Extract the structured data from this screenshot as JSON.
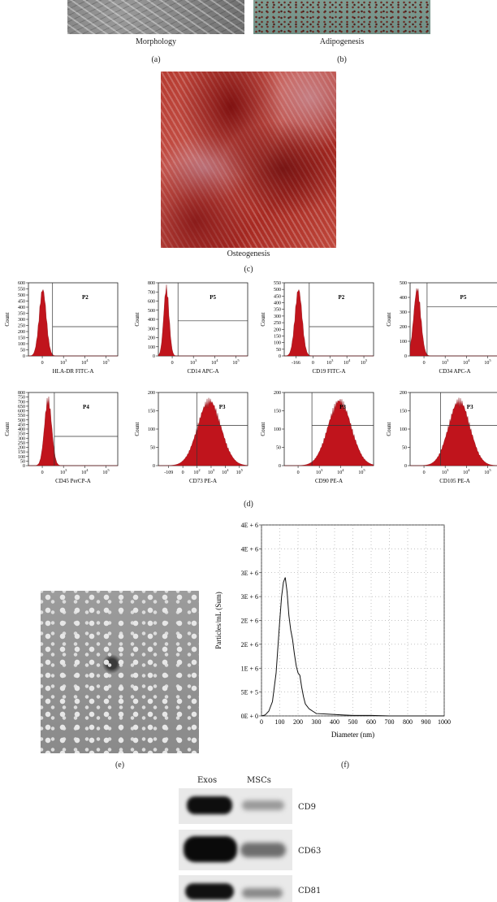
{
  "figure": {
    "panel_a": {
      "caption": "Morphology",
      "label": "(a)"
    },
    "panel_b": {
      "caption": "Adipogenesis",
      "label": "(b)"
    },
    "panel_c": {
      "caption": "Osteogenesis",
      "label": "(c)"
    },
    "panel_d": {
      "label": "(d)"
    },
    "panel_e": {
      "label": "(e)"
    },
    "panel_f": {
      "label": "(f)"
    },
    "panel_g": {
      "lane_labels": [
        "Exos",
        "MSCs"
      ],
      "bands": [
        "CD9",
        "CD63",
        "CD81"
      ]
    }
  },
  "chart_data": [
    {
      "type": "histogram",
      "xlabel": "HLA-DR FITC-A",
      "ylabel": "Count",
      "ylim": [
        0,
        600
      ],
      "yticks": [
        0,
        50,
        100,
        150,
        200,
        250,
        300,
        350,
        400,
        450,
        500,
        550,
        600
      ],
      "xticks": [
        "0",
        "10^3",
        "10^4",
        "10^5"
      ],
      "gate": "P2"
    },
    {
      "type": "histogram",
      "xlabel": "CD14 APC-A",
      "ylabel": "Count",
      "ylim": [
        0,
        800
      ],
      "yticks": [
        0,
        100,
        200,
        300,
        400,
        500,
        600,
        700,
        800
      ],
      "xticks": [
        "0",
        "10^3",
        "10^4",
        "10^5"
      ],
      "gate": "P5"
    },
    {
      "type": "histogram",
      "xlabel": "CD19 FITC-A",
      "ylabel": "Count",
      "ylim": [
        0,
        550
      ],
      "yticks": [
        0,
        50,
        100,
        150,
        200,
        250,
        300,
        350,
        400,
        450,
        500,
        550
      ],
      "xticks": [
        "-166",
        "0",
        "10^3",
        "10^4",
        "10^5"
      ],
      "gate": "P2"
    },
    {
      "type": "histogram",
      "xlabel": "CD34 APC-A",
      "ylabel": "Count",
      "ylim": [
        0,
        500
      ],
      "yticks": [
        0,
        100,
        200,
        300,
        400,
        500
      ],
      "xticks": [
        "0",
        "10^3",
        "10^4",
        "10^5"
      ],
      "gate": "P5"
    },
    {
      "type": "histogram",
      "xlabel": "CD45 PerCP-A",
      "ylabel": "Count",
      "ylim": [
        0,
        800
      ],
      "yticks": [
        0,
        50,
        100,
        150,
        200,
        250,
        300,
        350,
        400,
        450,
        500,
        550,
        600,
        650,
        700,
        750,
        800
      ],
      "xticks": [
        "0",
        "10^3",
        "10^4",
        "10^5"
      ],
      "gate": "P4"
    },
    {
      "type": "histogram",
      "xlabel": "CD73 PE-A",
      "ylabel": "Count",
      "ylim": [
        0,
        200
      ],
      "yticks": [
        0,
        50,
        100,
        150,
        200
      ],
      "xticks": [
        "-109",
        "0",
        "10^2",
        "10^3",
        "10^4",
        "10^5"
      ],
      "gate": "P3"
    },
    {
      "type": "histogram",
      "xlabel": "CD90 PE-A",
      "ylabel": "Count",
      "ylim": [
        0,
        200
      ],
      "yticks": [
        0,
        50,
        100,
        150,
        200
      ],
      "xticks": [
        "0",
        "10^3",
        "10^4",
        "10^5"
      ],
      "gate": "P3"
    },
    {
      "type": "histogram",
      "xlabel": "CD105 PE-A",
      "ylabel": "Count",
      "ylim": [
        0,
        200
      ],
      "yticks": [
        0,
        50,
        100,
        150,
        200
      ],
      "xticks": [
        "0",
        "10^3",
        "10^4",
        "10^5"
      ],
      "gate": "P3"
    },
    {
      "type": "line",
      "xlabel": "Diameter (nm)",
      "ylabel": "Particles/mL (Sum)",
      "xlim": [
        0,
        1000
      ],
      "xticks": [
        0,
        100,
        200,
        300,
        400,
        500,
        600,
        700,
        800,
        900,
        1000
      ],
      "yticks": [
        "0E + 0",
        "5E + 5",
        "1E + 6",
        "2E + 6",
        "2E + 6",
        "3E + 6",
        "3E + 6",
        "4E + 6",
        "4E + 6"
      ],
      "grid": true,
      "x": [
        0,
        20,
        40,
        60,
        80,
        100,
        110,
        120,
        130,
        140,
        150,
        160,
        170,
        180,
        190,
        200,
        210,
        220,
        230,
        240,
        260,
        280,
        300,
        350,
        400,
        450,
        500,
        600,
        700,
        800,
        900,
        1000
      ],
      "y": [
        0,
        0.02,
        0.1,
        0.3,
        0.9,
        2.0,
        2.5,
        2.8,
        2.9,
        2.6,
        2.1,
        1.8,
        1.6,
        1.3,
        1.05,
        0.9,
        0.85,
        0.6,
        0.4,
        0.25,
        0.15,
        0.1,
        0.05,
        0.04,
        0.03,
        0.02,
        0.01,
        0.01,
        0,
        0,
        0,
        0
      ]
    }
  ]
}
